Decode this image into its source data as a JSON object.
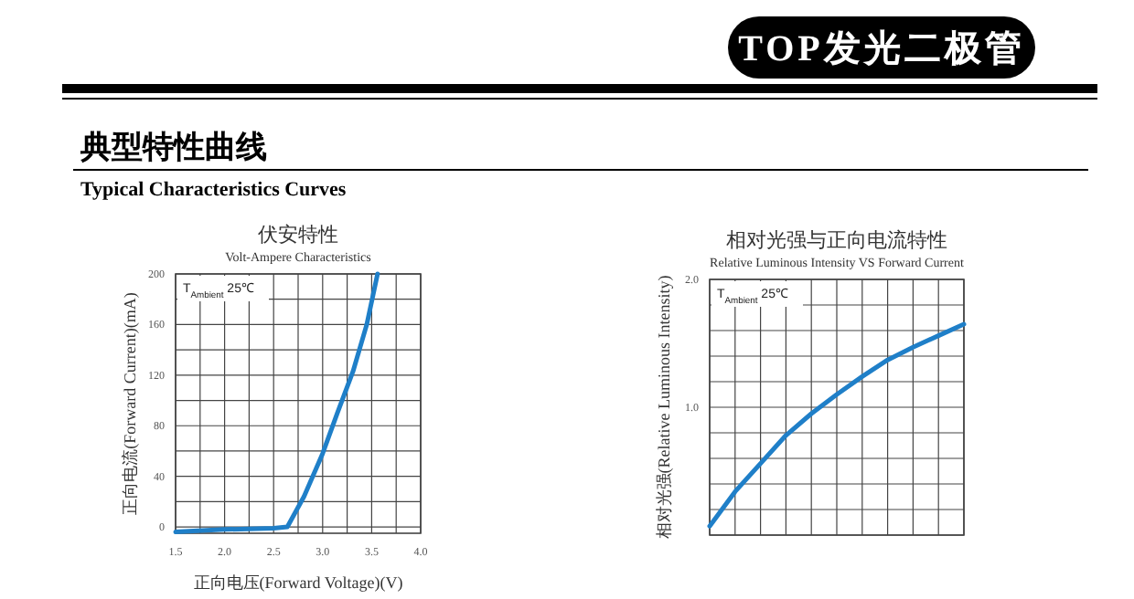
{
  "chart_data": [
    {
      "type": "line",
      "title": "伏安特性",
      "subtitle": "Volt-Ampere Characteristics",
      "xlabel": "正向电压(Forward Voltage)(V)",
      "ylabel": "正向电流(Forward Current)(mA)",
      "annotations": [
        "TOP发光二极管",
        "典型特性曲线",
        "Typical Characteristics Curves",
        "T$_{Ambient}$ 25℃"
      ],
      "x": [
        1.5,
        2.0,
        2.5,
        2.64,
        2.81,
        3.0,
        3.15,
        3.31,
        3.45,
        3.56
      ],
      "series": [
        {
          "color": "#1f7fc8",
          "values": [
            -4,
            -2,
            -1,
            0,
            24,
            58,
            90,
            123,
            160,
            200
          ]
        }
      ],
      "xlim": [
        1.5,
        4.0
      ],
      "ylim": [
        -5,
        200
      ],
      "xticks": [
        {
          "value": 1.5,
          "label": "1.5"
        },
        {
          "value": 1.75,
          "label": null
        },
        {
          "value": 2,
          "label": "2.0"
        },
        {
          "value": 2.25,
          "label": null
        },
        {
          "value": 2.5,
          "label": "2.5"
        },
        {
          "value": 2.75,
          "label": null
        },
        {
          "value": 3,
          "label": "3.0"
        },
        {
          "value": 3.25,
          "label": null
        },
        {
          "value": 3.5,
          "label": "3.5"
        },
        {
          "value": 3.75,
          "label": null
        },
        {
          "value": 4,
          "label": "4.0"
        }
      ],
      "yticks": [
        0,
        {
          "value": 20,
          "label": null
        },
        40,
        {
          "value": 60,
          "label": null
        },
        80,
        {
          "value": 100,
          "label": null
        },
        120,
        {
          "value": 140,
          "label": null
        },
        160,
        {
          "value": 180,
          "label": null
        },
        200
      ],
      "grid": true,
      "line_style": "solid"
    },
    {
      "type": "line",
      "title": "相对光强与正向电流特性",
      "subtitle": "Relative Luminous Intensity VS Forward Current",
      "ylabel": "相对光强(Relative Luminous Intensity)",
      "annotations": [
        "T$_{Ambient}$ 25℃"
      ],
      "categories": [
        null,
        null,
        null,
        null,
        null,
        null,
        null,
        null,
        null,
        null,
        null
      ],
      "series": [
        {
          "color": "#1f7fc8",
          "values": [
            0.07,
            0.34,
            0.56,
            0.78,
            0.95,
            1.1,
            1.24,
            1.37,
            1.47,
            1.56,
            1.65
          ]
        }
      ],
      "ylim": [
        0,
        2.0
      ],
      "yticks": [
        {
          "value": 0,
          "label": null
        },
        {
          "value": 0.2,
          "label": null
        },
        {
          "value": 0.4,
          "label": null
        },
        {
          "value": 0.6,
          "label": null
        },
        {
          "value": 0.8,
          "label": null
        },
        {
          "value": 1,
          "label": "1.0"
        },
        {
          "value": 1.2,
          "label": null
        },
        {
          "value": 1.4,
          "label": null
        },
        {
          "value": 1.6,
          "label": null
        },
        {
          "value": 1.8,
          "label": null
        },
        {
          "value": 2,
          "label": "2.0"
        }
      ],
      "tick_labels": "y",
      "grid": true,
      "line_style": "solid"
    }
  ]
}
